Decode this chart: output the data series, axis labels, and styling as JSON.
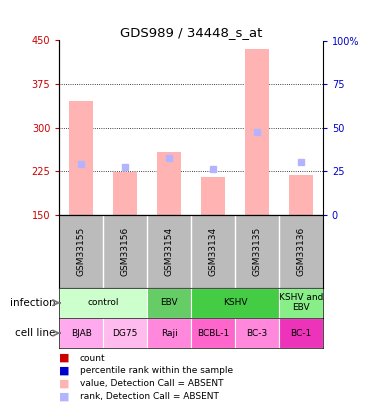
{
  "title": "GDS989 / 34448_s_at",
  "samples": [
    "GSM33155",
    "GSM33156",
    "GSM33154",
    "GSM33134",
    "GSM33135",
    "GSM33136"
  ],
  "bar_values": [
    345,
    223,
    258,
    215,
    435,
    218
  ],
  "bar_base": 150,
  "rank_values": [
    237,
    232,
    248,
    228,
    292,
    240
  ],
  "ylim_left": [
    150,
    450
  ],
  "ylim_right": [
    0,
    100
  ],
  "yticks_left": [
    150,
    225,
    300,
    375,
    450
  ],
  "yticks_right": [
    0,
    25,
    50,
    75,
    100
  ],
  "ytick_labels_right": [
    "0",
    "25",
    "50",
    "75",
    "100%"
  ],
  "bar_color": "#ffb3b3",
  "rank_color": "#b3b3ff",
  "sample_bg_color": "#bbbbbb",
  "infection_spans": [
    [
      0,
      2,
      "control"
    ],
    [
      2,
      3,
      "EBV"
    ],
    [
      3,
      5,
      "KSHV"
    ],
    [
      5,
      6,
      "KSHV and\nEBV"
    ]
  ],
  "infect_colors": {
    "control": "#ccffcc",
    "EBV": "#66cc66",
    "KSHV": "#44cc44",
    "KSHV and\nEBV": "#88ee88"
  },
  "cell_data": [
    [
      "BJAB",
      0,
      1,
      "#ffaaee"
    ],
    [
      "DG75",
      1,
      2,
      "#ffbbee"
    ],
    [
      "Raji",
      2,
      3,
      "#ff88dd"
    ],
    [
      "BCBL-1",
      3,
      4,
      "#ff66cc"
    ],
    [
      "BC-3",
      4,
      5,
      "#ff88dd"
    ],
    [
      "BC-1",
      5,
      6,
      "#ee33bb"
    ]
  ],
  "legend_colors": [
    "#cc0000",
    "#0000cc",
    "#ffb3b3",
    "#b3b3ff"
  ],
  "legend_labels": [
    "count",
    "percentile rank within the sample",
    "value, Detection Call = ABSENT",
    "rank, Detection Call = ABSENT"
  ]
}
